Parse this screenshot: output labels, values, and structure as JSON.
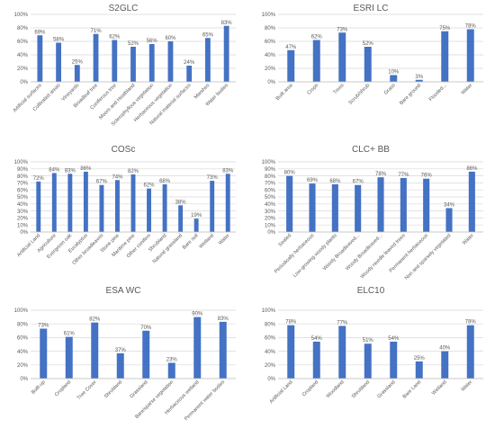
{
  "figure": {
    "bar_color": "#4472C4",
    "grid_color": "#d9d9d9",
    "text_color": "#595959"
  },
  "chart_data": [
    {
      "type": "bar",
      "title": "S2GLC",
      "xlabel": "",
      "ylabel": "",
      "ylim": [
        0,
        100
      ],
      "ticks": [
        "0%",
        "20%",
        "40%",
        "60%",
        "80%",
        "100%"
      ],
      "grid": true,
      "categories": [
        "Artificial surfaces",
        "Cultivated areas",
        "Vineyards",
        "Broadleaf tree",
        "Coniferous tree",
        "Moors and Heathland",
        "Sclerophyllous vegetation",
        "Herbaceous vegetation",
        "Natural material surfaces",
        "Marshes",
        "Water bodies"
      ],
      "values": [
        69,
        58,
        25,
        71,
        62,
        52,
        56,
        60,
        24,
        65,
        83
      ],
      "labels": [
        "69%",
        "58%",
        "25%",
        "71%",
        "62%",
        "52%",
        "56%",
        "60%",
        "24%",
        "65%",
        "83%"
      ]
    },
    {
      "type": "bar",
      "title": "ESRI LC",
      "xlabel": "",
      "ylabel": "",
      "ylim": [
        0,
        100
      ],
      "ticks": [
        "0%",
        "20%",
        "40%",
        "60%",
        "80%",
        "100%"
      ],
      "grid": true,
      "categories": [
        "Built area",
        "Crops",
        "Trees",
        "Scrub/shrub",
        "Grass",
        "Bare ground",
        "Flooded...",
        "Water"
      ],
      "values": [
        47,
        62,
        73,
        52,
        10,
        3,
        75,
        78
      ],
      "labels": [
        "47%",
        "62%",
        "73%",
        "52%",
        "10%",
        "3%",
        "75%",
        "78%"
      ]
    },
    {
      "type": "bar",
      "title": "COSc",
      "xlabel": "",
      "ylabel": "",
      "ylim": [
        0,
        100
      ],
      "ticks": [
        "0%",
        "10%",
        "20%",
        "30%",
        "40%",
        "50%",
        "60%",
        "70%",
        "80%",
        "90%",
        "100%"
      ],
      "grid": true,
      "categories": [
        "Artificial Land",
        "Agriculture",
        "Evergreen oak",
        "Eucalyptus",
        "Other broadleaves",
        "Stone pine",
        "Maritime pine",
        "Other conifers",
        "Shrubland",
        "Natural grassland",
        "Bare soil",
        "Wetland",
        "Water"
      ],
      "values": [
        72,
        84,
        83,
        86,
        67,
        74,
        82,
        62,
        68,
        38,
        19,
        73,
        83
      ],
      "labels": [
        "72%",
        "84%",
        "83%",
        "86%",
        "67%",
        "74%",
        "82%",
        "62%",
        "68%",
        "38%",
        "19%",
        "73%",
        "83%"
      ]
    },
    {
      "type": "bar",
      "title": "CLC+ BB",
      "xlabel": "",
      "ylabel": "",
      "ylim": [
        0,
        100
      ],
      "ticks": [
        "0%",
        "10%",
        "20%",
        "30%",
        "40%",
        "50%",
        "60%",
        "70%",
        "80%",
        "90%",
        "100%"
      ],
      "grid": true,
      "categories": [
        "Sealed",
        "Periodically herbaceous",
        "Low-growing woody plants",
        "Woody Broadleaved...",
        "Woody Broadleaved...",
        "Woody needle leaved trees",
        "Permanent herbaceous",
        "Non and sparsely vegetated",
        "Water"
      ],
      "values": [
        80,
        69,
        68,
        67,
        78,
        77,
        76,
        34,
        86
      ],
      "labels": [
        "80%",
        "69%",
        "68%",
        "67%",
        "78%",
        "77%",
        "76%",
        "34%",
        "86%"
      ]
    },
    {
      "type": "bar",
      "title": "ESA WC",
      "xlabel": "",
      "ylabel": "",
      "ylim": [
        0,
        100
      ],
      "ticks": [
        "0%",
        "20%",
        "40%",
        "60%",
        "80%",
        "100%"
      ],
      "grid": true,
      "categories": [
        "Built-up",
        "Cropland",
        "Tree Cover",
        "Shrubland",
        "Grassland",
        "Bare/sparse vegetation",
        "Herbaceous wetland",
        "Permanent water bodies"
      ],
      "values": [
        73,
        61,
        82,
        37,
        70,
        23,
        90,
        83
      ],
      "labels": [
        "73%",
        "61%",
        "82%",
        "37%",
        "70%",
        "23%",
        "90%",
        "83%"
      ]
    },
    {
      "type": "bar",
      "title": "ELC10",
      "xlabel": "",
      "ylabel": "",
      "ylim": [
        0,
        100
      ],
      "ticks": [
        "0%",
        "20%",
        "40%",
        "60%",
        "80%",
        "100%"
      ],
      "grid": true,
      "categories": [
        "Artificial Land",
        "Cropland",
        "Woodland",
        "Shrubland",
        "Grassland",
        "Bare Land",
        "Wetland",
        "Water"
      ],
      "values": [
        78,
        54,
        77,
        51,
        54,
        25,
        40,
        78
      ],
      "labels": [
        "78%",
        "54%",
        "77%",
        "51%",
        "54%",
        "25%",
        "40%",
        "78%"
      ]
    }
  ]
}
